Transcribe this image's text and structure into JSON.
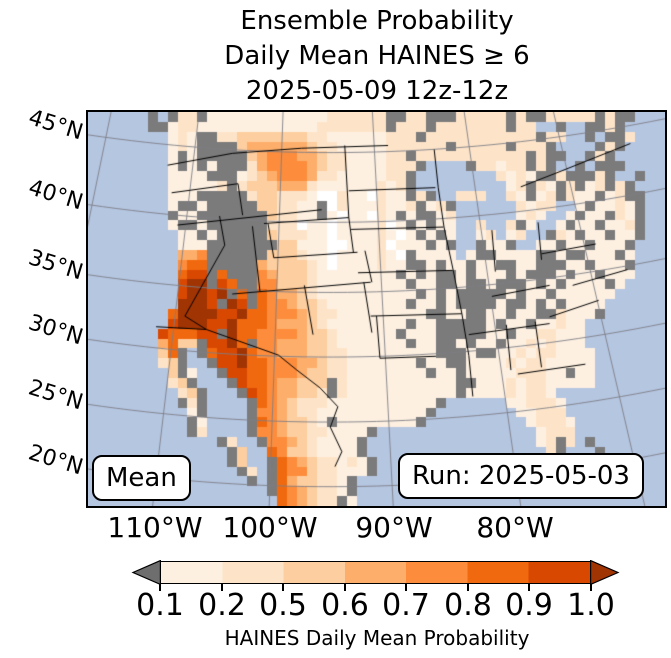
{
  "title": {
    "line1": "Ensemble Probability",
    "line2": "Daily Mean HAINES ≥ 6",
    "line3": "2025-05-09 12z-12z"
  },
  "map": {
    "lat_labels": [
      "45°N",
      "40°N",
      "35°N",
      "30°N",
      "25°N",
      "20°N"
    ],
    "lon_labels": [
      "110°W",
      "100°W",
      "90°W",
      "80°W"
    ],
    "mean_label": "Mean",
    "run_label": "Run: 2025-05-03",
    "ocean_color": "#b5c6e1",
    "missing_color": "#7b7b7b",
    "gridline_color": "#7e7e86",
    "border_color": "#000000",
    "palette": {
      "~": "#b5c6e1",
      "w": "#ffffff",
      "g": "#7b7b7b",
      "1": "#fdf0e1",
      "2": "#fde4c9",
      "3": "#fdce9f",
      "4": "#fdae6b",
      "5": "#fd8d3c",
      "6": "#f1690e",
      "7": "#d94801",
      "8": "#a13403"
    },
    "grid": [
      "~~~~~~g~g22g111111111111222222gg22ggg22222g2gg22222g2gg~~",
      "~~~~~~gg1221111111111112222222g222g2222222g22~~g~~gg2g~~",
      "~~~~~~~~121gg22333333322111111222g22222222222g22~~g~gg2~~~",
      "~~~~~~~~121gggg344444432211111222222g22222g222g~~~~g2g~~~",
      "~~~~~~~~1g1ggggg3455544322111122g22222222222g2gg~~g2g~~~~~",
      "~~~~~~~~1g1g1ggg24555543221111222g~~~~g22122g2g~~g~ggg~~~~",
      "~~~~~~~~1111ggg12345554221111122g~~~~~~~~2121gg2ggg2g~~g~~",
      "~~~~~~~~111112g23334442111111212g~~~~~~~~~12g21g2g12g2g~~~",
      "~~~~~~~~111ggggg2332221ww211w211g2g~~222~~21g12g211g12gg~~",
      "~~~~~~~~1gg1ggggg332211gw21112112g12g~~~~~~2122~~1g1121g~~",
      "~~~~~~~~g11ggggggg32211g1w11w21g1gg12~~~~~~121~~1g11g21g~~",
      "~~~~~~~~1gg1gggggg222w11w11112w1g1g11~~2~~2g1~~1g11g112g~~",
      "~~~~~~~~~11g1ggggg322211w111121w1g1g1~~12~12~~g21g11g11g~~",
      "~~~~~~~~~111ggggggg33111ww1112w111g1g~~g11g~~11g11g111g~~~",
      "~~~~~~~~~445gggggg333211w111121wg1111~1gg1111gg1gg111g1~~~",
      "~~~~~~~~~566ggggg4333321w1111211gg1g11g11gg11ggg11g111g~~~",
      "~~~~~~~~~677g6ggg54333211111111g1g1gg1g111g1ggg1g11g111~~~",
      "~~~~~~~~~788g76gg553332111111111g11gg1gg1ggg1g1g1111g1~~~~",
      "~~~~~~~~~78878g6g6544321111111111g1g1ggggg1g11g111111~~~~~",
      "~~~~~~~~~8887g87g655433211111111g11g1gggg1gg1g1g1111~~~~~~",
      "~~~~~~~~68888778665554322111111111gg11gg11g11gg2111g~~~~~~",
      "~~~~~~~~788877866654443211111111g11ggggg1g11g11211~~~~~~~",
      "~~~~~~~766677g86655554332111111g111ggggg11g1122111~~~~~~~",
      "~~~~~~~4633g7786g554443321111111g11gg1g11g11212111~~~~~~~",
      "~~~~~~~36g~g677865544433221111111 11ggg1gg1121221111~~~~~~~",
      "~~~~~~~23g~~g77866555443221111111g11gg111121221111 1~~~~~~~",
      "~~~~~~~~3g1~~g77665554332211111111g11g1111122211g11~~~~~~~",
      "~~~~~~~~23g~~~g766544333g211111111111gg11121221111 1~~~~~~~",
      "~~~~~~~~~23g~~~g76544332g211111111111g111121221~~~~~~~~~~~",
      "~~~~~~~~~g2g~~~~g654322211111111111g~~~~~~112221~~~~~~~~~~",
      "~~~~~~~~~~1g~~~~g55432211111111111g~~~~~~~~11222~~~~~~~~~~",
      "~~~~~~~~~~g1~~~~g6543321g11111111g~~~~~~~~~~12221~~~~~~~~~",
      "~~~~~~~~~~g2~~~~g55433221111g~~~~~~~~~~~~~~~~1222~~~~~~~~~",
      "~~~~~~~~~~~~~g2~~g554321111g~~~~~~~~~~~~~~~~~12g2~g~~~~~~~",
      "~~~~~~~~~~~~~~g3~~653321111g~~~~~~~~~~~~~~~~~~2g~~~g~~~~~~",
      "~~~~~~~~~~~~~~g3~~g654322121g~~~~~~~~~~~~~~~~~~g~~gg~~~~~~",
      "~~~~~~~~~~~~~~~g2~g655322111g~~~~~~~~~~~~~~~~~~~~~~~~~~~~",
      "~~~~~~~~~~~~~~~~g~g64332 21g~~~~~~~~~~~~~~~~~~~~~~~~~~~~~~",
      "~~~~~~~~~~~~~~~~~~g6543221g~~~~~~~~~~~~~~~~~~~~~~~~~~~~~~",
      "~~~~~~~~~~~~~~~~~~~654322g1~~~~~~~~~~~~~~~~~~~~~~~~~~~~~~"
    ]
  },
  "colorbar": {
    "ticks": [
      "0.1",
      "0.2",
      "0.5",
      "0.6",
      "0.7",
      "0.8",
      "0.9",
      "1.0"
    ],
    "label": "HAINES Daily Mean Probability",
    "colors": [
      "#fdf0e1",
      "#fde4c9",
      "#fdce9f",
      "#fdae6b",
      "#fd8d3c",
      "#f1690e",
      "#d94801"
    ],
    "under_color": "#6e6e6e",
    "over_color": "#a13403"
  },
  "chart_data": {
    "type": "heatmap",
    "title": "Ensemble Probability Daily Mean HAINES ≥ 6 2025-05-09 12z-12z",
    "legend_label": "HAINES Daily Mean Probability",
    "legend_bounds": [
      0.1,
      0.2,
      0.5,
      0.6,
      0.7,
      0.8,
      0.9,
      1.0
    ],
    "x_ticks": [
      "110°W",
      "100°W",
      "90°W",
      "80°W"
    ],
    "y_ticks": [
      "45°N",
      "40°N",
      "35°N",
      "30°N",
      "25°N",
      "20°N"
    ],
    "annotations": [
      "Mean",
      "Run: 2025-05-03"
    ],
    "summary": "Highest probabilities (0.8-1.0) over southern California, Arizona, New Mexico and northwest Mexico; moderate (0.5-0.8) over Montana and west Texas; low elsewhere; gray cells indicate masked/no-data terrain."
  }
}
